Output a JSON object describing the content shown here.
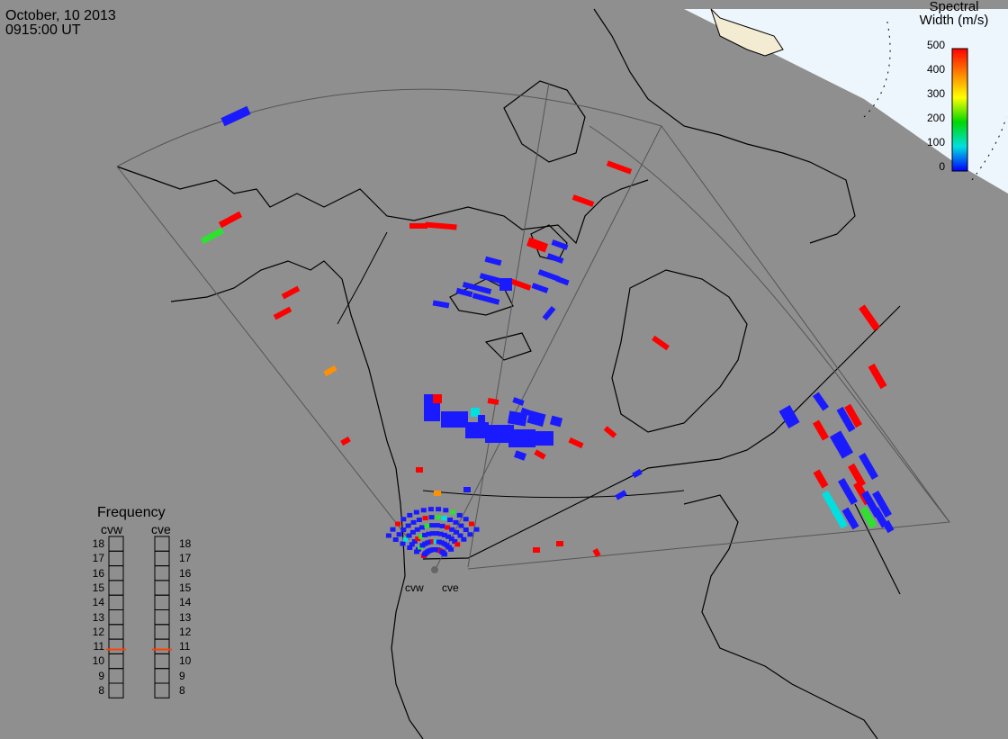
{
  "header": {
    "date": "October, 10 2013",
    "time": "0915:00 UT"
  },
  "colorbar": {
    "title_line1": "Spectral",
    "title_line2": "Width (m/s)",
    "ticks": [
      "500",
      "400",
      "300",
      "200",
      "100",
      "0"
    ],
    "colors": [
      "#ff0000",
      "#ff7f00",
      "#ffff00",
      "#00d800",
      "#00e0e0",
      "#0000ff"
    ]
  },
  "frequency_panel": {
    "title": "Frequency",
    "radars": [
      "cvw",
      "cve"
    ],
    "labels": [
      "18",
      "17",
      "16",
      "15",
      "14",
      "13",
      "12",
      "11",
      "10",
      "9",
      "8"
    ],
    "selected": {
      "cvw": 10.8,
      "cve": 10.8
    },
    "marker_color": "#ff4000"
  },
  "radar_sites": [
    "cvw",
    "cve"
  ]
}
